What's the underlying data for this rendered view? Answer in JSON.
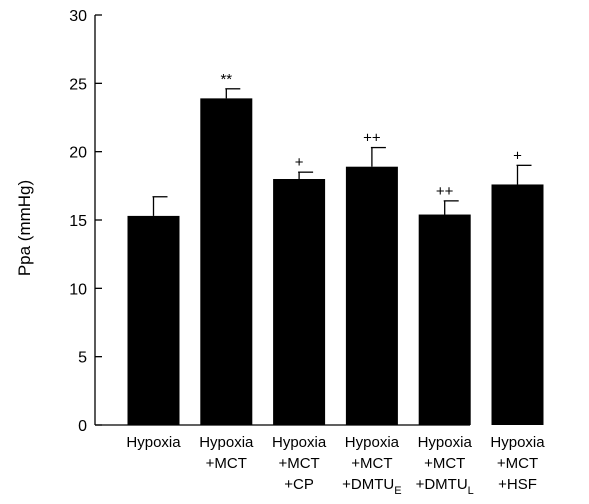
{
  "chart_data": {
    "type": "bar",
    "title": "",
    "xlabel": "",
    "ylabel": "Ppa (mmHg)",
    "ylim": [
      0,
      30
    ],
    "yticks": [
      0,
      5,
      10,
      15,
      20,
      25,
      30
    ],
    "grid": false,
    "bar_color": "#000000",
    "categories": [
      {
        "lines": [
          {
            "text": "Hypoxia"
          }
        ]
      },
      {
        "lines": [
          {
            "text": "Hypoxia"
          },
          {
            "text": "+MCT"
          }
        ]
      },
      {
        "lines": [
          {
            "text": "Hypoxia"
          },
          {
            "text": "+MCT"
          },
          {
            "text": "+CP"
          }
        ]
      },
      {
        "lines": [
          {
            "text": "Hypoxia"
          },
          {
            "text": "+MCT"
          },
          {
            "text": "+DMTU",
            "sub": "E"
          }
        ]
      },
      {
        "lines": [
          {
            "text": "Hypoxia"
          },
          {
            "text": "+MCT"
          },
          {
            "text": "+DMTU",
            "sub": "L"
          }
        ]
      },
      {
        "lines": [
          {
            "text": "Hypoxia"
          },
          {
            "text": "+MCT"
          },
          {
            "text": "+HSF"
          }
        ]
      }
    ],
    "values": [
      15.3,
      23.9,
      18.0,
      18.9,
      15.4,
      17.6
    ],
    "errors": [
      1.4,
      0.7,
      0.5,
      1.4,
      1.0,
      1.4
    ],
    "annotations": [
      "",
      "**",
      "+",
      "++",
      "++",
      "+"
    ]
  }
}
